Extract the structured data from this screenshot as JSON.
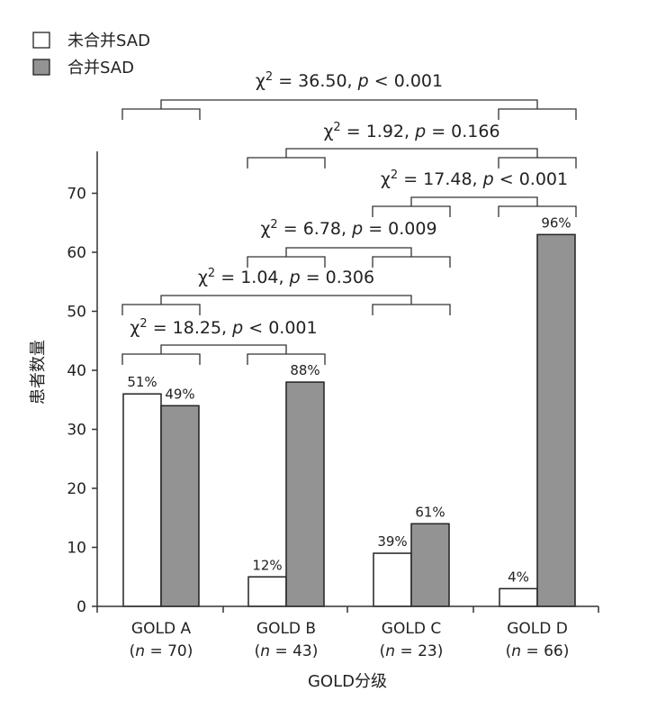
{
  "chart_data": {
    "type": "bar",
    "categories": [
      "GOLD A",
      "GOLD B",
      "GOLD C",
      "GOLD D"
    ],
    "category_n": [
      "(n = 70)",
      "(n = 43)",
      "(n = 23)",
      "(n = 66)"
    ],
    "series": [
      {
        "name": "未合并SAD",
        "color": "#ffffff",
        "values": [
          36,
          5,
          9,
          3
        ],
        "labels": [
          "51%",
          "12%",
          "39%",
          "4%"
        ]
      },
      {
        "name": "合并SAD",
        "color": "#939393",
        "values": [
          34,
          38,
          14,
          63
        ],
        "labels": [
          "49%",
          "88%",
          "61%",
          "96%"
        ]
      }
    ],
    "xlabel": "GOLD分级",
    "ylabel": "患者数量",
    "ylim": [
      0,
      76
    ],
    "yticks": [
      0,
      10,
      20,
      30,
      40,
      50,
      60,
      70
    ],
    "legend_position": "top-left",
    "grid": false,
    "comparisons": [
      {
        "groups": [
          0,
          3
        ],
        "stat": "χ",
        "sup": "2",
        "value": " = 36.50, ",
        "p_text": "p < 0.001"
      },
      {
        "groups": [
          1,
          3
        ],
        "stat": "χ",
        "sup": "2",
        "value": " = 1.92, ",
        "p_text": "p = 0.166"
      },
      {
        "groups": [
          2,
          3
        ],
        "stat": "χ",
        "sup": "2",
        "value": " = 17.48, ",
        "p_text": "p < 0.001"
      },
      {
        "groups": [
          1,
          2
        ],
        "stat": "χ",
        "sup": "2",
        "value": " = 6.78, ",
        "p_text": "p = 0.009"
      },
      {
        "groups": [
          0,
          2
        ],
        "stat": "χ",
        "sup": "2",
        "value": " = 1.04, ",
        "p_text": "p = 0.306"
      },
      {
        "groups": [
          0,
          1
        ],
        "stat": "χ",
        "sup": "2",
        "value": " = 18.25, ",
        "p_text": "p < 0.001"
      }
    ]
  }
}
